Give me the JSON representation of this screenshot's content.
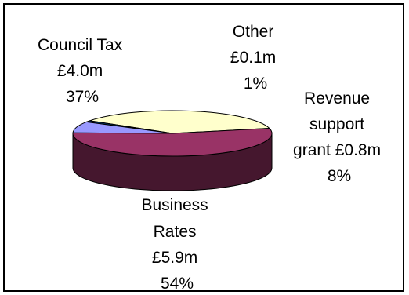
{
  "chart_data": {
    "type": "pie",
    "style": "3d",
    "title": "",
    "slices": [
      {
        "label": "Council Tax",
        "amount": "£4.0m",
        "percent_label": "37%",
        "value": 37,
        "color": "#ffffcc"
      },
      {
        "label": "Other",
        "amount": "£0.1m",
        "percent_label": "1%",
        "value": 1,
        "color": "#003366"
      },
      {
        "label": "Revenue support grant",
        "amount": "£0.8m",
        "percent_label": "8%",
        "value": 8,
        "color": "#9999ff"
      },
      {
        "label": "Business Rates",
        "amount": "£5.9m",
        "percent_label": "54%",
        "value": 54,
        "color": "#993366"
      }
    ],
    "label_lines": {
      "council_tax": [
        "Council Tax",
        "£4.0m",
        "37%"
      ],
      "other": [
        "Other",
        "£0.1m",
        "1%"
      ],
      "revenue_support": [
        "Revenue",
        "support",
        "grant £0.8m",
        "8%"
      ],
      "business_rates": [
        "Business",
        "Rates",
        "£5.9m",
        "54%"
      ]
    }
  }
}
